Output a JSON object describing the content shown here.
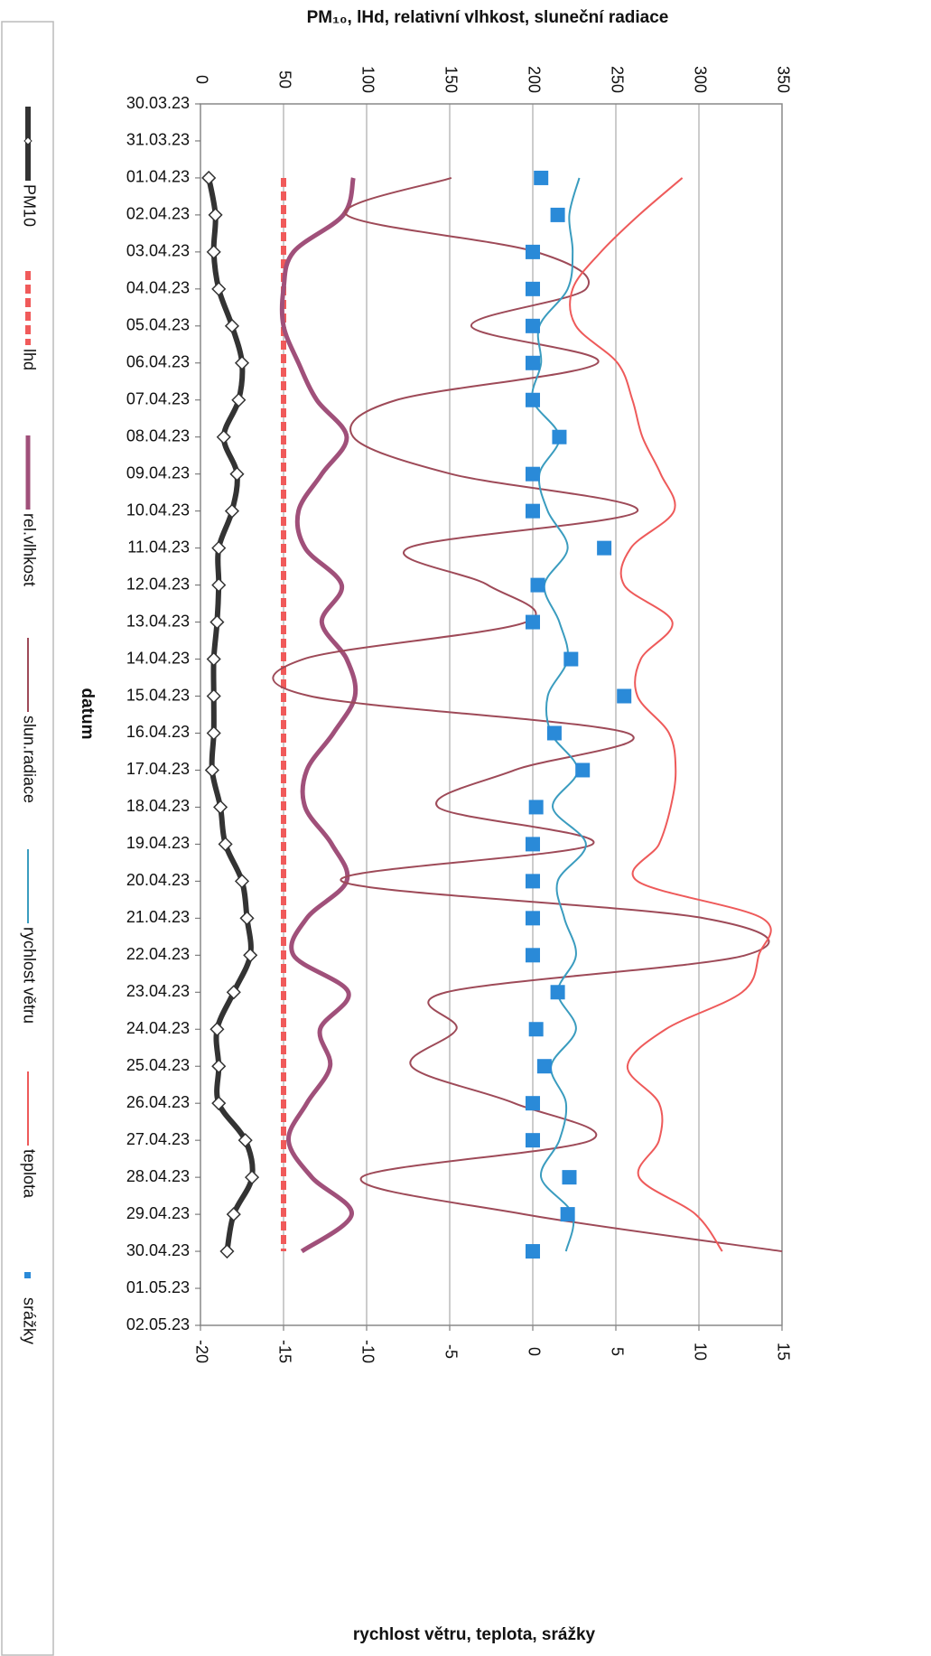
{
  "chart_data": {
    "type": "line",
    "top_axis_title": "PM₁₀, lHd, relativní vlhkost, sluneční radiace",
    "bottom_axis_title": "rychlost větru, teplota, srážky",
    "category_axis_title": "datum",
    "categories": [
      "30.03.23",
      "31.03.23",
      "01.04.23",
      "02.04.23",
      "03.04.23",
      "04.04.23",
      "05.04.23",
      "06.04.23",
      "07.04.23",
      "08.04.23",
      "09.04.23",
      "10.04.23",
      "11.04.23",
      "12.04.23",
      "13.04.23",
      "14.04.23",
      "15.04.23",
      "16.04.23",
      "17.04.23",
      "18.04.23",
      "19.04.23",
      "20.04.23",
      "21.04.23",
      "22.04.23",
      "23.04.23",
      "24.04.23",
      "25.04.23",
      "26.04.23",
      "27.04.23",
      "28.04.23",
      "29.04.23",
      "30.04.23",
      "01.05.23",
      "02.05.23"
    ],
    "ylim": [
      0,
      350
    ],
    "yticks": [
      0,
      50,
      100,
      150,
      200,
      250,
      300,
      350
    ],
    "y2lim": [
      -20,
      15
    ],
    "y2ticks": [
      -20,
      -15,
      -10,
      -5,
      0,
      5,
      10,
      15
    ],
    "grid": true,
    "series": [
      {
        "name": "PM10",
        "color": "#333333",
        "width": 6,
        "marker": "diamond",
        "values": [
          null,
          null,
          5,
          9,
          8,
          11,
          19,
          25,
          23,
          14,
          22,
          19,
          11,
          11,
          10,
          8,
          8,
          8,
          7,
          12,
          15,
          25,
          28,
          30,
          20,
          10,
          11,
          11,
          27,
          31,
          20,
          16,
          null,
          null
        ]
      },
      {
        "name": "lhd",
        "color": "#f05a5a",
        "width": 6,
        "dashed": true,
        "values": [
          null,
          null,
          50,
          50,
          50,
          50,
          50,
          50,
          50,
          50,
          50,
          50,
          50,
          50,
          50,
          50,
          50,
          50,
          50,
          50,
          50,
          50,
          50,
          50,
          50,
          50,
          50,
          50,
          50,
          50,
          50,
          50,
          null,
          null
        ]
      },
      {
        "name": "rel.vlhkost",
        "color": "#a0507a",
        "width": 5,
        "values": [
          null,
          null,
          92,
          86,
          56,
          50,
          50,
          59,
          70,
          88,
          73,
          59,
          63,
          85,
          73,
          88,
          93,
          80,
          64,
          63,
          79,
          88,
          64,
          56,
          89,
          72,
          78,
          64,
          53,
          67,
          91,
          61,
          null,
          null
        ]
      },
      {
        "name": "slun.radiace",
        "color": "#9e4a58",
        "width": 2,
        "values": [
          null,
          null,
          151,
          88,
          202,
          232,
          163,
          239,
          118,
          92,
          151,
          263,
          125,
          173,
          196,
          62,
          66,
          257,
          189,
          143,
          236,
          85,
          303,
          328,
          148,
          154,
          127,
          189,
          235,
          97,
          195,
          350,
          null,
          null
        ]
      },
      {
        "name": "rychlost větru",
        "color": "#3a9cbf",
        "width": 2,
        "axis": "y2",
        "values": [
          null,
          null,
          2.8,
          2.2,
          2.4,
          2.1,
          0.4,
          0.5,
          0,
          1.6,
          0.4,
          0.9,
          2.1,
          0.7,
          1.6,
          2.1,
          0.9,
          1.1,
          2.7,
          1.2,
          3.2,
          1.5,
          1.9,
          2.6,
          1.5,
          2.6,
          1.1,
          2.0,
          1.6,
          0.5,
          2.4,
          2.0,
          null,
          null
        ]
      },
      {
        "name": "teplota",
        "color": "#ee5a5a",
        "width": 2,
        "axis": "y2",
        "values": [
          null,
          null,
          9.0,
          6.4,
          4.1,
          2.4,
          2.6,
          5.1,
          6.0,
          6.6,
          7.7,
          8.5,
          5.9,
          5.5,
          8.4,
          6.5,
          6.3,
          8.2,
          8.6,
          8.3,
          7.6,
          6.3,
          13.8,
          13.6,
          12.6,
          8.0,
          5.7,
          7.6,
          7.6,
          6.4,
          9.8,
          11.4,
          null,
          null
        ]
      },
      {
        "name": "srážky",
        "color": "#2a8ad8",
        "axis": "y2",
        "marker": "square",
        "line": false,
        "values": [
          null,
          null,
          0.5,
          1.5,
          0,
          0,
          0,
          0,
          0,
          1.6,
          0,
          0,
          4.3,
          0.3,
          0,
          2.3,
          5.5,
          1.3,
          3.0,
          0.2,
          0,
          0,
          0,
          0,
          1.5,
          0.2,
          0.7,
          0,
          0,
          2.2,
          2.1,
          0,
          null,
          null
        ]
      }
    ]
  }
}
